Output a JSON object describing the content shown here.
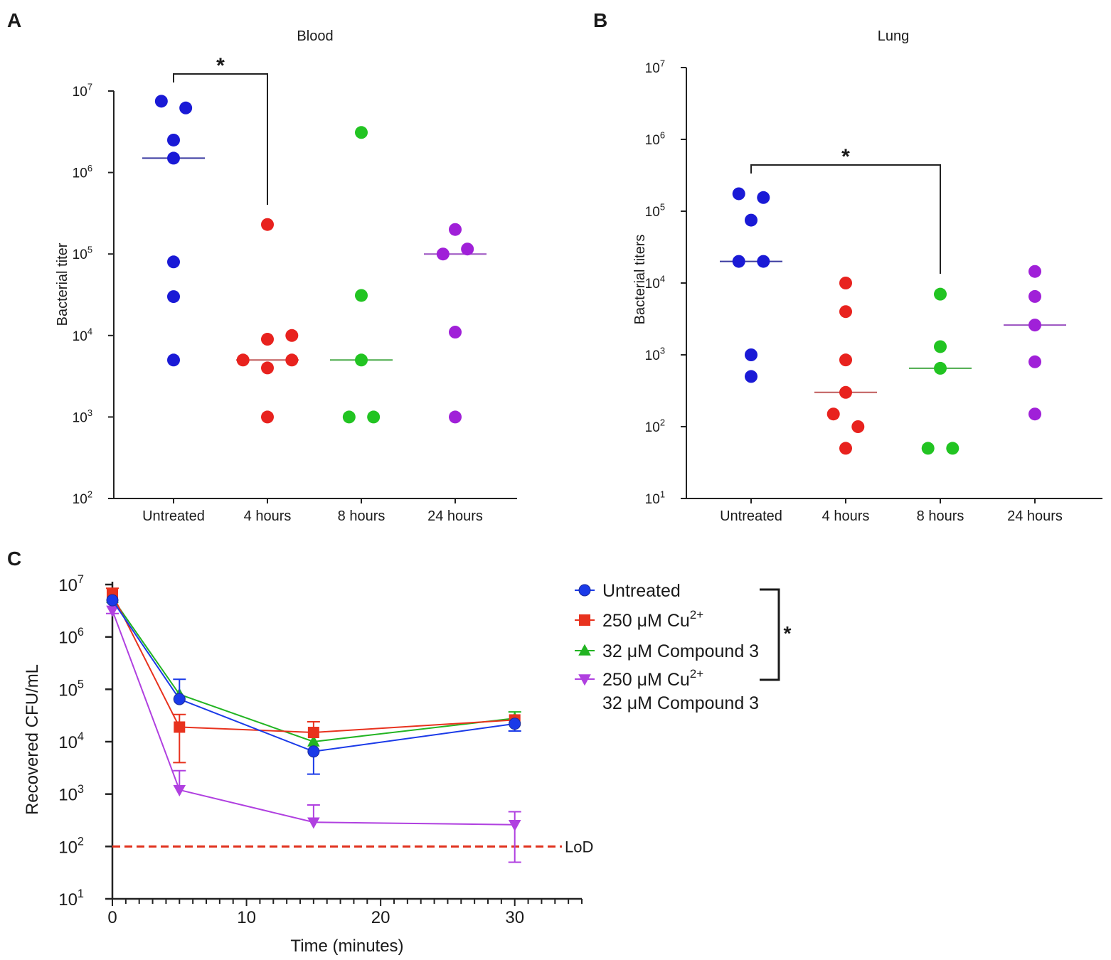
{
  "panel_labels": {
    "A": "A",
    "B": "B",
    "C": "C"
  },
  "chart_data": [
    {
      "id": "A",
      "type": "scatter",
      "title": "Blood",
      "ylabel": "Bacterial titer",
      "xlabel": "",
      "yscale": "log",
      "ylim_exp": [
        2,
        7
      ],
      "yticks": [
        {
          "base": "10",
          "exp": "2"
        },
        {
          "base": "10",
          "exp": "3"
        },
        {
          "base": "10",
          "exp": "4"
        },
        {
          "base": "10",
          "exp": "5"
        },
        {
          "base": "10",
          "exp": "6"
        },
        {
          "base": "10",
          "exp": "7"
        }
      ],
      "categories": [
        "Untreated",
        "4 hours",
        "8 hours",
        "24 hours"
      ],
      "colors": [
        "#1a1ad6",
        "#e8221e",
        "#22c422",
        "#a020d8"
      ],
      "median_colors": [
        "#3a3aa0",
        "#c05a5a",
        "#4aaa4a",
        "#9a50c0"
      ],
      "groups": [
        {
          "points": [
            [
              -0.13,
              7500000
            ],
            [
              0.13,
              6200000
            ],
            [
              0,
              2500000
            ],
            [
              0,
              1500000
            ],
            [
              0,
              80000
            ],
            [
              0,
              30000
            ],
            [
              0,
              5000
            ]
          ],
          "median": 1500000
        },
        {
          "points": [
            [
              0,
              230000
            ],
            [
              0,
              9000
            ],
            [
              0.26,
              10000
            ],
            [
              -0.26,
              5000
            ],
            [
              0.26,
              5000
            ],
            [
              0,
              4000
            ],
            [
              0,
              1000
            ]
          ],
          "median": 5000
        },
        {
          "points": [
            [
              0,
              3100000
            ],
            [
              0,
              31000
            ],
            [
              0,
              5000
            ],
            [
              -0.13,
              1000
            ],
            [
              0.13,
              1000
            ]
          ],
          "median": 5000
        },
        {
          "points": [
            [
              0,
              200000
            ],
            [
              -0.13,
              100000
            ],
            [
              0.13,
              115000
            ],
            [
              0,
              11000
            ],
            [
              0,
              1000
            ]
          ],
          "median": 100000
        }
      ],
      "significance": {
        "from": 0,
        "to": 1,
        "label": "*"
      }
    },
    {
      "id": "B",
      "type": "scatter",
      "title": "Lung",
      "ylabel": "Bacterial titers",
      "xlabel": "",
      "yscale": "log",
      "ylim_exp": [
        1,
        7
      ],
      "yticks": [
        {
          "base": "10",
          "exp": "1"
        },
        {
          "base": "10",
          "exp": "2"
        },
        {
          "base": "10",
          "exp": "3"
        },
        {
          "base": "10",
          "exp": "4"
        },
        {
          "base": "10",
          "exp": "5"
        },
        {
          "base": "10",
          "exp": "6"
        },
        {
          "base": "10",
          "exp": "7"
        }
      ],
      "categories": [
        "Untreated",
        "4 hours",
        "8 hours",
        "24 hours"
      ],
      "colors": [
        "#1a1ad6",
        "#e8221e",
        "#22c422",
        "#a020d8"
      ],
      "median_colors": [
        "#3a3aa0",
        "#c05a5a",
        "#4aaa4a",
        "#9a50c0"
      ],
      "groups": [
        {
          "points": [
            [
              -0.13,
              175000
            ],
            [
              0.13,
              155000
            ],
            [
              0,
              75000
            ],
            [
              -0.13,
              20000
            ],
            [
              0.13,
              20000
            ],
            [
              0,
              1000
            ],
            [
              0,
              500
            ]
          ],
          "median": 20000
        },
        {
          "points": [
            [
              0,
              10000
            ],
            [
              0,
              4000
            ],
            [
              0,
              850
            ],
            [
              0,
              300
            ],
            [
              -0.13,
              150
            ],
            [
              0.13,
              100
            ],
            [
              0,
              50
            ]
          ],
          "median": 300
        },
        {
          "points": [
            [
              0,
              7000
            ],
            [
              0,
              1300
            ],
            [
              0,
              650
            ],
            [
              -0.13,
              50
            ],
            [
              0.13,
              50
            ]
          ],
          "median": 650
        },
        {
          "points": [
            [
              0,
              14500
            ],
            [
              0,
              6500
            ],
            [
              0,
              2600
            ],
            [
              0,
              800
            ],
            [
              0,
              150
            ]
          ],
          "median": 2600
        }
      ],
      "significance": {
        "from": 0,
        "to": 2,
        "label": "*"
      }
    },
    {
      "id": "C",
      "type": "line",
      "title": "",
      "xlabel": "Time (minutes)",
      "ylabel": "Recovered CFU/mL",
      "yscale": "log",
      "ylim_exp": [
        1,
        7
      ],
      "xlim": [
        0,
        35
      ],
      "xticks": [
        "0",
        "10",
        "20",
        "30"
      ],
      "yticks": [
        {
          "base": "10",
          "exp": "1"
        },
        {
          "base": "10",
          "exp": "2"
        },
        {
          "base": "10",
          "exp": "3"
        },
        {
          "base": "10",
          "exp": "4"
        },
        {
          "base": "10",
          "exp": "5"
        },
        {
          "base": "10",
          "exp": "6"
        },
        {
          "base": "10",
          "exp": "7"
        }
      ],
      "x": [
        0,
        5,
        15,
        30
      ],
      "series": [
        {
          "name": "Untreated",
          "legend": "Untreated",
          "legend_sup": "",
          "legend_line2": "",
          "color": "#1a3ae8",
          "marker": "circle",
          "values": [
            5000000,
            65000,
            6500,
            22000
          ],
          "err_hi": [
            null,
            155000,
            null,
            null
          ],
          "err_lo": [
            null,
            null,
            2400,
            16000
          ]
        },
        {
          "name": "250 μM Cu2+",
          "legend": "250 μM Cu",
          "legend_sup": "2+",
          "legend_line2": "",
          "color": "#e8321e",
          "marker": "square",
          "values": [
            6500000,
            19000,
            15000,
            26000
          ],
          "err_hi": [
            8500000,
            33000,
            24000,
            null
          ],
          "err_lo": [
            null,
            4000,
            null,
            null
          ]
        },
        {
          "name": "32 μM Compound 3",
          "legend": "32 μM Compound 3",
          "legend_sup": "",
          "legend_line2": "",
          "color": "#22b422",
          "marker": "triangle-up",
          "values": [
            5500000,
            80000,
            10000,
            28000
          ],
          "err_hi": [
            null,
            null,
            null,
            37000
          ],
          "err_lo": [
            null,
            null,
            null,
            null
          ]
        },
        {
          "name": "250 μM Cu2+ 32 μM Compound 3",
          "legend": "250 μM Cu",
          "legend_sup": "2+",
          "legend_line2": "32 μM Compound 3",
          "color": "#b040e0",
          "marker": "triangle-down",
          "values": [
            3200000,
            1200,
            290,
            260
          ],
          "err_hi": [
            null,
            2800,
            620,
            460
          ],
          "err_lo": [
            2800000,
            null,
            null,
            50
          ]
        }
      ],
      "lod": {
        "value": 100,
        "label": "LoD",
        "color": "#e0321e"
      },
      "legend_significance": "*"
    }
  ]
}
